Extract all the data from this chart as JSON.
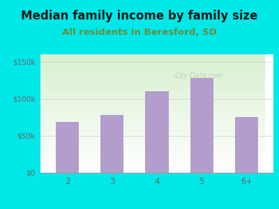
{
  "title": "Median family income by family size",
  "subtitle": "All residents in Beresford, SD",
  "categories": [
    "2",
    "3",
    "4",
    "5",
    "6+"
  ],
  "values": [
    68000,
    78000,
    110000,
    128000,
    75000
  ],
  "bar_color": "#b39dcc",
  "outer_bg": "#00e8e8",
  "yticks": [
    0,
    50000,
    100000,
    150000
  ],
  "ytick_labels": [
    "$0",
    "$50k",
    "$100k",
    "$150k"
  ],
  "ylim": [
    0,
    160000
  ],
  "title_fontsize": 12,
  "subtitle_fontsize": 9.5,
  "title_color": "#1a1a1a",
  "subtitle_color": "#6b8c3a",
  "tick_color": "#666666",
  "watermark": "City-Data.com"
}
